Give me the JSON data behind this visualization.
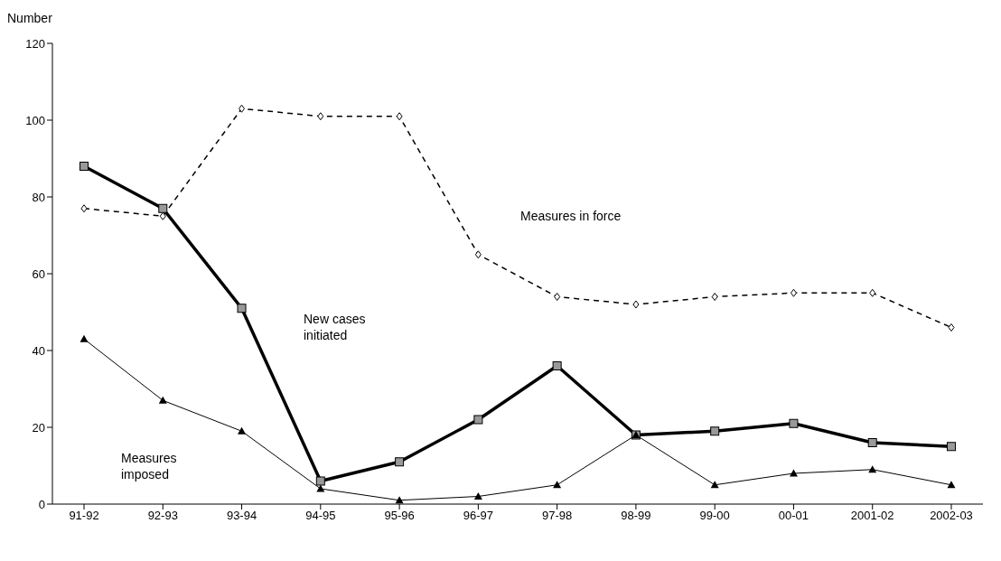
{
  "chart_data": {
    "type": "line",
    "ylabel": "Number",
    "categories": [
      "91-92",
      "92-93",
      "93-94",
      "94-95",
      "95-96",
      "96-97",
      "97-98",
      "98-99",
      "99-00",
      "00-01",
      "2001-02",
      "2002-03"
    ],
    "series": [
      {
        "color": "#000000",
        "marker": "diamond",
        "line_style": "dashed",
        "values": [
          77,
          75,
          103,
          101,
          101,
          65,
          54,
          52,
          54,
          55,
          55,
          46
        ]
      },
      {
        "color": "#000000",
        "marker": "square",
        "line_style": "solid",
        "values": [
          88,
          77,
          51,
          6,
          11,
          22,
          36,
          18,
          19,
          21,
          16,
          15
        ]
      },
      {
        "color": "#000000",
        "marker": "triangle",
        "line_style": "solid",
        "values": [
          43,
          27,
          19,
          4,
          1,
          2,
          5,
          18,
          5,
          8,
          9,
          5
        ]
      }
    ],
    "ylim": [
      0,
      120
    ],
    "yticks": [
      0,
      20,
      40,
      60,
      80,
      100,
      120
    ],
    "grid": false,
    "legend": false,
    "annotations": [
      "Measures in force",
      "New cases initiated",
      "Measures imposed"
    ]
  }
}
